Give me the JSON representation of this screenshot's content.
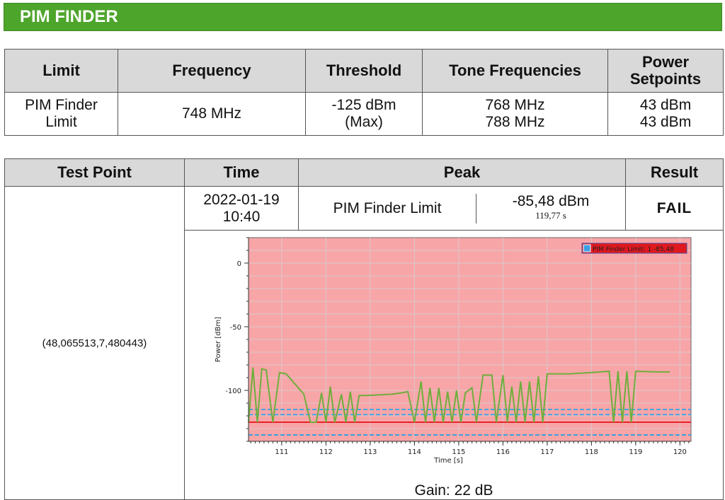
{
  "header": {
    "title": "PIM FINDER"
  },
  "limits_table": {
    "headers": [
      "Limit",
      "Frequency",
      "Threshold",
      "Tone Frequencies",
      "Power Setpoints"
    ],
    "row": {
      "limit_l1": "PIM Finder",
      "limit_l2": "Limit",
      "frequency": "748 MHz",
      "threshold_l1": "-125 dBm",
      "threshold_l2": "(Max)",
      "tone_l1": "768 MHz",
      "tone_l2": "788 MHz",
      "power_l1": "43 dBm",
      "power_l2": "43 dBm"
    }
  },
  "results_table": {
    "headers": [
      "Test Point",
      "Time",
      "Peak",
      "Result"
    ],
    "row": {
      "test_point": "(48,065513,7,480443)",
      "time_l1": "2022-01-19",
      "time_l2": "10:40",
      "peak_label": "PIM Finder Limit",
      "peak_value": "-85,48 dBm",
      "peak_time": "119,77 s",
      "result": "FAIL",
      "gain": "Gain: 22 dB"
    }
  },
  "chart_data": {
    "type": "line",
    "ylabel": "Power [dBm]",
    "xlabel": "Time [s]",
    "xlim": [
      110.25,
      120.25
    ],
    "ylim": [
      -140,
      20
    ],
    "xticks": [
      111,
      112,
      113,
      114,
      115,
      116,
      117,
      118,
      119,
      120
    ],
    "yticks": [
      0,
      -50,
      -100
    ],
    "legend": "PIM Finder Limit: 1 -85,48",
    "legend_position": "top-right",
    "background_color": "#f8a5a8",
    "grid": true,
    "threshold_lines": [
      {
        "y": -125,
        "color": "#e8222a",
        "style": "solid"
      },
      {
        "y": -115,
        "color": "#4aa3df",
        "style": "dashed"
      },
      {
        "y": -119,
        "color": "#4aa3df",
        "style": "dashed"
      },
      {
        "y": -135,
        "color": "#3aa0e0",
        "style": "dashed"
      }
    ],
    "series": [
      {
        "color": "#6fae3c",
        "x": [
          110.25,
          110.35,
          110.45,
          110.55,
          110.65,
          110.8,
          110.95,
          111.1,
          111.5,
          111.65,
          111.78,
          111.9,
          112.0,
          112.1,
          112.2,
          112.35,
          112.45,
          112.55,
          112.65,
          112.75,
          112.9,
          113.5,
          113.7,
          113.85,
          114.0,
          114.15,
          114.25,
          114.35,
          114.45,
          114.55,
          114.65,
          114.75,
          114.85,
          114.95,
          115.05,
          115.15,
          115.3,
          115.4,
          115.55,
          115.65,
          115.75,
          115.85,
          116.0,
          116.1,
          116.2,
          116.3,
          116.4,
          116.5,
          116.6,
          116.7,
          116.8,
          116.9,
          117.0,
          117.5,
          118.0,
          118.4,
          118.5,
          118.6,
          118.7,
          118.8,
          118.9,
          119.0,
          119.5,
          119.77
        ],
        "y": [
          -125,
          -82,
          -125,
          -83,
          -84,
          -125,
          -86,
          -87,
          -103,
          -125,
          -125,
          -102,
          -125,
          -97,
          -125,
          -103,
          -125,
          -101,
          -125,
          -104,
          -104,
          -103,
          -102,
          -101,
          -125,
          -93,
          -125,
          -98,
          -125,
          -98,
          -125,
          -101,
          -125,
          -100,
          -125,
          -102,
          -98,
          -125,
          -88,
          -88,
          -88,
          -125,
          -88,
          -125,
          -97,
          -125,
          -93,
          -125,
          -93,
          -125,
          -89,
          -125,
          -87,
          -87,
          -86,
          -85,
          -125,
          -85,
          -125,
          -85,
          -125,
          -85,
          -85.5,
          -85.48
        ]
      }
    ]
  }
}
